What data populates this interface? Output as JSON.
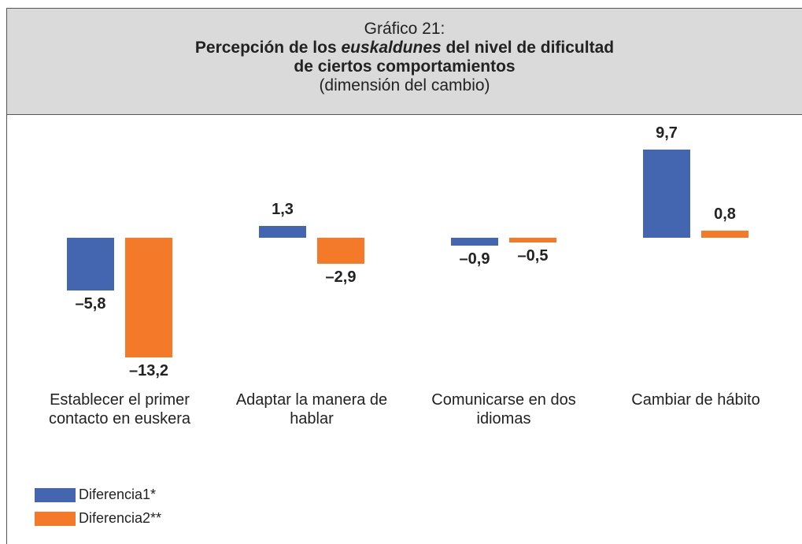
{
  "chart_data": {
    "type": "bar",
    "title_prefix": "Gráfico 21:",
    "title": {
      "parts": [
        "Percepción de los",
        "euskaldunes",
        "del nivel de dificultad",
        "de ciertos comportamientos"
      ]
    },
    "subtitle": "(dimensión del cambio)",
    "categories": [
      "Establecer el primer contacto en euskera",
      "Adaptar la manera de hablar",
      "Comunicarse en dos idiomas",
      "Cambiar de hábito"
    ],
    "series": [
      {
        "name": "Diferencia1*",
        "color": "#4466b0",
        "values": [
          -5.8,
          1.3,
          -0.9,
          9.7
        ],
        "value_labels": [
          "–5,8",
          "1,3",
          "–0,9",
          "9,7"
        ]
      },
      {
        "name": "Diferencia2**",
        "color": "#f47a2a",
        "values": [
          -13.2,
          -2.9,
          -0.5,
          0.8
        ],
        "value_labels": [
          "–13,2",
          "–2,9",
          "–0,5",
          "0,8"
        ]
      }
    ],
    "legend": "bottom-left"
  }
}
